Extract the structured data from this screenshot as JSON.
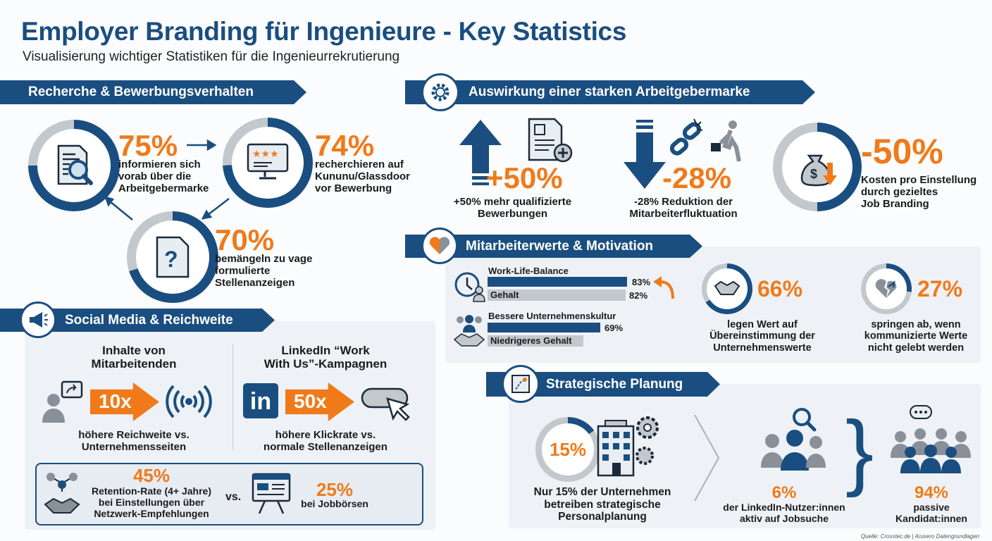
{
  "header": {
    "title": "Employer Branding für Ingenieure - Key Statistics",
    "subtitle": "Visualisierung wichtiger Statistiken für die Ingenieurrekrutierung"
  },
  "colors": {
    "navy": "#1a4e80",
    "orange": "#f07a1a",
    "grey": "#b9bec4"
  },
  "research": {
    "title": "Recherche & Bewerbungsverhalten",
    "items": [
      {
        "value": "75%",
        "text": [
          "informieren sich",
          "vorab über die",
          "Arbeitgebermarke"
        ],
        "icon": "document-search-icon",
        "fraction": 0.75
      },
      {
        "value": "74%",
        "text": [
          "recherchieren auf",
          "Kununu/Glassdoor",
          "vor Bewerbung"
        ],
        "icon": "rating-monitor-icon",
        "fraction": 0.74
      },
      {
        "value": "70%",
        "text": [
          "bemängeln zu vage",
          "formulierte",
          "Stellenanzeigen"
        ],
        "icon": "question-document-icon",
        "fraction": 0.7
      }
    ]
  },
  "social": {
    "title": "Social Media & Reichweite",
    "left": {
      "heading": [
        "Inhalte von",
        "Mitarbeitenden"
      ],
      "value": "10x",
      "text": [
        "höhere Reichweite vs.",
        "Unternehmensseiten"
      ]
    },
    "right": {
      "heading": [
        "LinkedIn “Work",
        "With Us”-Kampagnen"
      ],
      "logo": "in",
      "value": "50x",
      "text": [
        "höhere Klickrate vs.",
        "normale Stellenanzeigen"
      ]
    },
    "retention": {
      "value": "45%",
      "text": [
        "Retention-Rate (4+ Jahre)",
        "bei Einstellungen über",
        "Netzwerk-Empfehlungen"
      ],
      "vs": "vs.",
      "value2": "25%",
      "text2": "bei Jobbörsen"
    }
  },
  "impact": {
    "title": "Auswirkung einer starken Arbeitgebermarke",
    "items": [
      {
        "value": "+50%",
        "text": [
          "+50% mehr qualifizierte",
          "Bewerbungen"
        ]
      },
      {
        "value": "-28%",
        "text": [
          "-28% Reduktion der",
          "Mitarbeiterfluktuation"
        ]
      },
      {
        "value": "-50%",
        "text": [
          "Kosten pro Einstellung",
          "durch gezieltes",
          "Job Branding"
        ],
        "fraction": 0.5
      }
    ]
  },
  "values": {
    "title": "Mitarbeiterwerte & Motivation",
    "bars": [
      {
        "label": "Work-Life-Balance",
        "value": "83%",
        "pct": 83,
        "inner": "",
        "type": "navy"
      },
      {
        "label": "",
        "value": "82%",
        "pct": 82,
        "inner": "Gehalt",
        "type": "grey"
      },
      {
        "label": "Bessere Unternehmenskultur",
        "value": "69%",
        "pct": 69,
        "inner": "",
        "type": "navy"
      },
      {
        "label": "",
        "value": "",
        "pct": 62,
        "inner": "Niedrigeres Gehalt",
        "type": "grey"
      }
    ],
    "stats": [
      {
        "value": "66%",
        "text": [
          "legen Wert auf",
          "Übereinstimmung der",
          "Unternehmenswerte"
        ],
        "fraction": 0.66
      },
      {
        "value": "27%",
        "text": [
          "springen ab, wenn",
          "kommunizierte Werte",
          "nicht gelebt werden"
        ],
        "fraction": 0.27
      }
    ]
  },
  "planning": {
    "title": "Strategische Planung",
    "strategic": {
      "value": "15%",
      "fraction": 0.15,
      "text": [
        "Nur 15% der Unternehmen",
        "betreiben strategische",
        "Personalplanung"
      ]
    },
    "active": {
      "value": "6%",
      "text": [
        "der LinkedIn-Nutzer:innen",
        "aktiv auf Jobsuche"
      ]
    },
    "passive": {
      "value": "94%",
      "text": [
        "passive",
        "Kandidat:innen"
      ]
    }
  },
  "source": "Quelle: Crosstec.de | Aruvero Datengrundlagen"
}
